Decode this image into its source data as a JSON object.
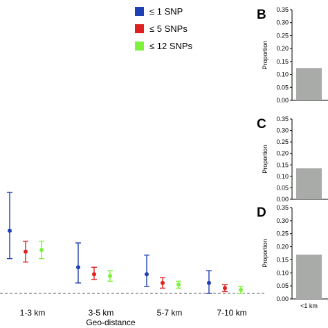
{
  "legend": {
    "items": [
      {
        "label": "≤ 1 SNP",
        "color": "#1f3fb4"
      },
      {
        "label": "≤ 5 SNPs",
        "color": "#e02020"
      },
      {
        "label": "≤ 12 SNPs",
        "color": "#7ef23a"
      }
    ]
  },
  "chart_data": [
    {
      "type": "scatter",
      "panel": "",
      "xlabel": "Geo-distance",
      "ylabel": "",
      "categories": [
        "1-3 km",
        "3-5 km",
        "5-7 km",
        "7-10 km"
      ],
      "reference_line": {
        "style": "dashed",
        "y": 0.01
      },
      "series": [
        {
          "name": "≤ 1 SNP",
          "color": "#1f3fb4",
          "values": [
            0.19,
            0.085,
            0.065,
            0.04
          ],
          "lower": [
            0.11,
            0.04,
            0.03,
            0.01
          ],
          "upper": [
            0.3,
            0.155,
            0.12,
            0.075
          ]
        },
        {
          "name": "≤ 5 SNPs",
          "color": "#e02020",
          "values": [
            0.13,
            0.065,
            0.04,
            0.025
          ],
          "lower": [
            0.1,
            0.05,
            0.025,
            0.015
          ],
          "upper": [
            0.16,
            0.085,
            0.055,
            0.035
          ]
        },
        {
          "name": "≤ 12 SNPs",
          "color": "#7ef23a",
          "values": [
            0.135,
            0.06,
            0.035,
            0.02
          ],
          "lower": [
            0.11,
            0.045,
            0.025,
            0.01
          ],
          "upper": [
            0.16,
            0.075,
            0.045,
            0.03
          ]
        }
      ],
      "ylim": [
        0,
        0.34
      ]
    },
    {
      "type": "bar",
      "panel": "B",
      "ylabel": "Proportion",
      "categories": [
        ""
      ],
      "values": [
        0.125
      ],
      "bar_color": "#a9aba9",
      "ylim": [
        0,
        0.35
      ],
      "yticks": [
        "0.00",
        "0.05",
        "0.10",
        "0.15",
        "0.20",
        "0.25",
        "0.30",
        "0.35"
      ]
    },
    {
      "type": "bar",
      "panel": "C",
      "ylabel": "Proportion",
      "categories": [
        ""
      ],
      "values": [
        0.135
      ],
      "bar_color": "#a9aba9",
      "ylim": [
        0,
        0.35
      ],
      "yticks": [
        "0.00",
        "0.05",
        "0.10",
        "0.15",
        "0.20",
        "0.25",
        "0.30",
        "0.35"
      ]
    },
    {
      "type": "bar",
      "panel": "D",
      "ylabel": "Proportion",
      "categories": [
        "<1 km"
      ],
      "values": [
        0.17
      ],
      "bar_color": "#a9aba9",
      "ylim": [
        0,
        0.35
      ],
      "yticks": [
        "0.00",
        "0.05",
        "0.10",
        "0.15",
        "0.20",
        "0.25",
        "0.30",
        "0.35"
      ]
    }
  ]
}
